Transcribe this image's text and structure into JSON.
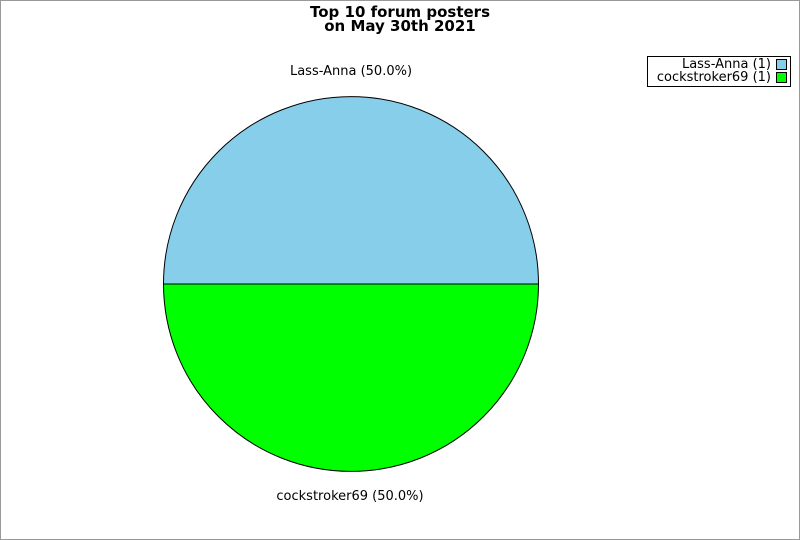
{
  "title": {
    "line1": "Top 10 forum posters",
    "line2": "on May 30th 2021"
  },
  "colors": {
    "background": "#ffffff",
    "frame_border": "#999999",
    "pie_outline": "#000000",
    "legend_border": "#000000",
    "text": "#000000"
  },
  "chart_data": {
    "type": "pie",
    "title": "Top 10 forum posters on May 30th 2021",
    "legend_position": "top-right",
    "start_angle_deg": 0,
    "direction": "counterclockwise",
    "total_posts": 2,
    "slices": [
      {
        "name": "Lass-Anna",
        "value": 1,
        "percent": 50.0,
        "color": "#87CEEB",
        "outer_label": "Lass-Anna (50.0%)",
        "legend_label": "Lass-Anna (1)"
      },
      {
        "name": "cockstroker69",
        "value": 1,
        "percent": 50.0,
        "color": "#00FF00",
        "outer_label": "cockstroker69 (50.0%)",
        "legend_label": "cockstroker69 (1)"
      }
    ]
  }
}
